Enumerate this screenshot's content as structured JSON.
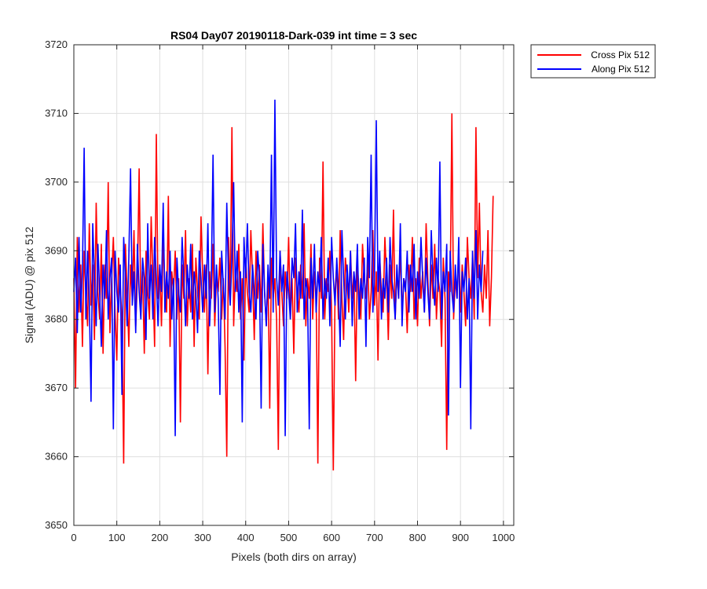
{
  "chart_data": {
    "type": "line",
    "title": "RS04 Day07 20190118-Dark-039 int time = 3 sec",
    "xlabel": "Pixels (both dirs on array)",
    "ylabel": "Signal (ADU) @ pix 512",
    "xlim": [
      0,
      1024
    ],
    "ylim": [
      3650,
      3720
    ],
    "x_ticks": [
      0,
      100,
      200,
      300,
      400,
      500,
      600,
      700,
      800,
      900,
      1000
    ],
    "y_ticks": [
      3650,
      3660,
      3670,
      3680,
      3690,
      3700,
      3710,
      3720
    ],
    "grid": true,
    "legend_position": "outside top-right",
    "x_step": 4,
    "series": [
      {
        "name": "Cross Pix 512",
        "color": "#ff0000",
        "values": [
          3686,
          3670,
          3692,
          3681,
          3688,
          3676,
          3690,
          3684,
          3679,
          3694,
          3682,
          3688,
          3677,
          3697,
          3684,
          3680,
          3691,
          3675,
          3688,
          3683,
          3700,
          3678,
          3686,
          3692,
          3681,
          3674,
          3689,
          3685,
          3680,
          3659,
          3691,
          3684,
          3676,
          3688,
          3683,
          3693,
          3679,
          3686,
          3702,
          3681,
          3687,
          3675,
          3690,
          3684,
          3680,
          3695,
          3686,
          3676,
          3707,
          3683,
          3688,
          3679,
          3692,
          3685,
          3681,
          3698,
          3676,
          3687,
          3684,
          3690,
          3680,
          3686,
          3665,
          3688,
          3683,
          3693,
          3679,
          3686,
          3681,
          3691,
          3676,
          3689,
          3684,
          3680,
          3695,
          3686,
          3681,
          3688,
          3672,
          3687,
          3683,
          3691,
          3679,
          3686,
          3684,
          3689,
          3680,
          3686,
          3676,
          3660,
          3692,
          3683,
          3708,
          3679,
          3687,
          3684,
          3691,
          3680,
          3686,
          3674,
          3689,
          3684,
          3681,
          3693,
          3686,
          3677,
          3690,
          3683,
          3688,
          3681,
          3694,
          3684,
          3679,
          3687,
          3667,
          3689,
          3683,
          3686,
          3680,
          3661,
          3690,
          3684,
          3679,
          3687,
          3683,
          3692,
          3680,
          3686,
          3675,
          3689,
          3684,
          3681,
          3688,
          3683,
          3694,
          3679,
          3686,
          3683,
          3691,
          3680,
          3687,
          3684,
          3659,
          3689,
          3683,
          3703,
          3680,
          3686,
          3684,
          3690,
          3681,
          3658,
          3684,
          3688,
          3680,
          3693,
          3683,
          3677,
          3689,
          3686,
          3681,
          3690,
          3683,
          3687,
          3671,
          3688,
          3684,
          3680,
          3691,
          3686,
          3683,
          3689,
          3680,
          3684,
          3693,
          3682,
          3687,
          3674,
          3689,
          3684,
          3681,
          3692,
          3686,
          3677,
          3688,
          3683,
          3696,
          3680,
          3687,
          3683,
          3690,
          3681,
          3686,
          3685,
          3678,
          3688,
          3684,
          3692,
          3680,
          3686,
          3679,
          3689,
          3683,
          3687,
          3681,
          3694,
          3686,
          3679,
          3688,
          3683,
          3691,
          3680,
          3686,
          3684,
          3676,
          3689,
          3683,
          3661,
          3687,
          3684,
          3710,
          3680,
          3686,
          3683,
          3690,
          3681,
          3688,
          3684,
          3679,
          3692,
          3686,
          3683,
          3689,
          3680,
          3708,
          3686,
          3697,
          3684,
          3681,
          3688,
          3683,
          3693,
          3679,
          3686,
          3698
        ]
      },
      {
        "name": "Along Pix 512",
        "color": "#0000ff",
        "values": [
          3684,
          3689,
          3678,
          3692,
          3681,
          3687,
          3705,
          3680,
          3690,
          3683,
          3668,
          3694,
          3686,
          3679,
          3691,
          3684,
          3676,
          3688,
          3683,
          3693,
          3680,
          3686,
          3689,
          3664,
          3690,
          3684,
          3681,
          3688,
          3669,
          3692,
          3686,
          3679,
          3689,
          3702,
          3682,
          3687,
          3678,
          3691,
          3684,
          3680,
          3689,
          3686,
          3677,
          3694,
          3683,
          3688,
          3680,
          3692,
          3686,
          3679,
          3688,
          3684,
          3697,
          3681,
          3687,
          3683,
          3690,
          3680,
          3686,
          3663,
          3689,
          3684,
          3681,
          3692,
          3686,
          3679,
          3688,
          3683,
          3691,
          3680,
          3687,
          3684,
          3678,
          3690,
          3686,
          3681,
          3688,
          3683,
          3694,
          3679,
          3686,
          3704,
          3681,
          3688,
          3683,
          3669,
          3690,
          3685,
          3680,
          3697,
          3686,
          3682,
          3689,
          3700,
          3684,
          3690,
          3681,
          3687,
          3665,
          3692,
          3686,
          3694,
          3684,
          3681,
          3688,
          3684,
          3680,
          3690,
          3686,
          3667,
          3691,
          3684,
          3679,
          3688,
          3683,
          3704,
          3681,
          3712,
          3686,
          3682,
          3690,
          3684,
          3688,
          3663,
          3687,
          3684,
          3680,
          3689,
          3686,
          3694,
          3681,
          3687,
          3683,
          3696,
          3680,
          3686,
          3684,
          3664,
          3689,
          3683,
          3691,
          3681,
          3687,
          3684,
          3692,
          3680,
          3686,
          3683,
          3689,
          3679,
          3692,
          3686,
          3682,
          3689,
          3684,
          3676,
          3693,
          3686,
          3680,
          3688,
          3683,
          3690,
          3679,
          3687,
          3684,
          3691,
          3680,
          3686,
          3683,
          3689,
          3676,
          3692,
          3686,
          3704,
          3681,
          3687,
          3709,
          3684,
          3690,
          3680,
          3686,
          3683,
          3689,
          3681,
          3692,
          3686,
          3684,
          3680,
          3688,
          3683,
          3694,
          3679,
          3686,
          3684,
          3690,
          3681,
          3688,
          3684,
          3691,
          3680,
          3687,
          3683,
          3692,
          3686,
          3681,
          3689,
          3684,
          3680,
          3693,
          3686,
          3682,
          3689,
          3684,
          3703,
          3680,
          3687,
          3684,
          3691,
          3666,
          3690,
          3684,
          3681,
          3688,
          3683,
          3692,
          3670,
          3687,
          3684,
          3689,
          3680,
          3686,
          3664,
          3690,
          3683,
          3693,
          3680,
          3688,
          3684,
          3690
        ]
      }
    ]
  }
}
